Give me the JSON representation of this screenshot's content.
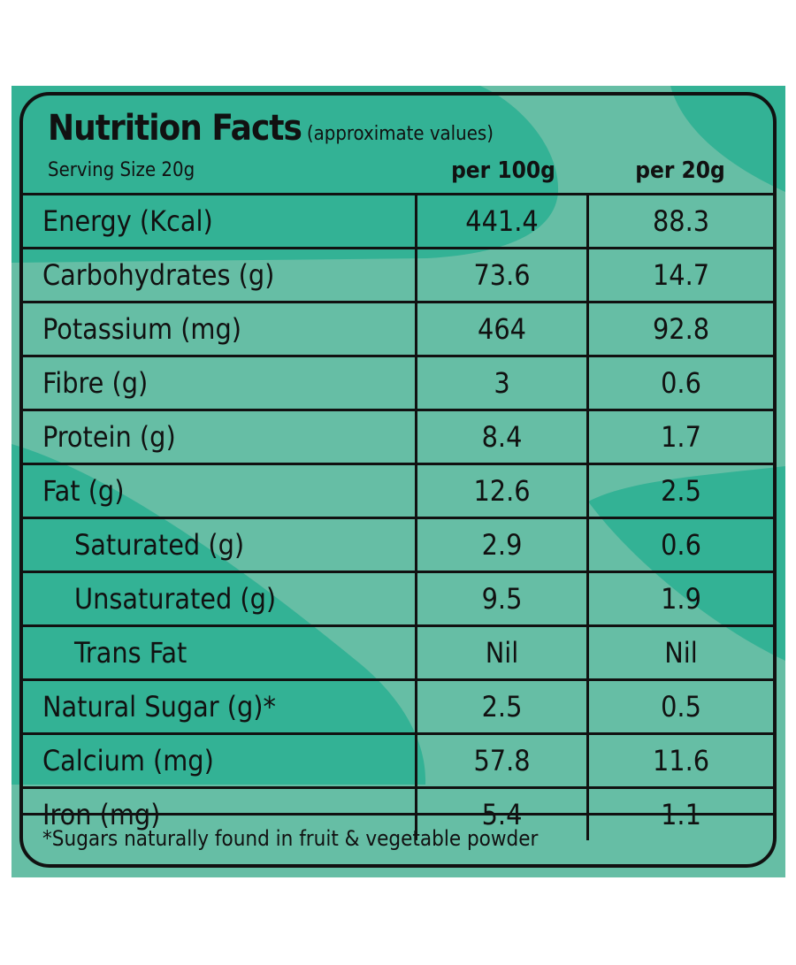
{
  "title": "Nutrition Facts",
  "subtitle": "(approximate values)",
  "serving_size": "Serving Size  20g",
  "columns": {
    "per100": "per 100g",
    "per20": "per 20g"
  },
  "rows": [
    {
      "label": "Energy (Kcal)",
      "per100": "441.4",
      "per20": "88.3"
    },
    {
      "label": "Carbohydrates (g)",
      "per100": "73.6",
      "per20": "14.7"
    },
    {
      "label": "Potassium (mg)",
      "per100": "464",
      "per20": "92.8"
    },
    {
      "label": "Fibre (g)",
      "per100": "3",
      "per20": "0.6"
    },
    {
      "label": "Protein (g)",
      "per100": "8.4",
      "per20": "1.7"
    },
    {
      "label": "Fat (g)",
      "per100": "12.6",
      "per20": "2.5"
    },
    {
      "label": "Saturated (g)",
      "per100": "2.9",
      "per20": "0.6"
    },
    {
      "label": "Unsaturated (g)",
      "per100": "9.5",
      "per20": "1.9"
    },
    {
      "label": "Trans Fat",
      "per100": "Nil",
      "per20": "Nil"
    },
    {
      "label": "Natural Sugar (g)*",
      "per100": "2.5",
      "per20": "0.5"
    },
    {
      "label": "Calcium (mg)",
      "per100": "57.8",
      "per20": "11.6"
    },
    {
      "label": "Iron (mg)",
      "per100": "5.4",
      "per20": "1.1"
    }
  ],
  "footnote": "*Sugars naturally found in fruit & vegetable powder",
  "colors": {
    "background_light": "#66bea5",
    "background_dark": "#33b295",
    "ink": "#111111"
  }
}
